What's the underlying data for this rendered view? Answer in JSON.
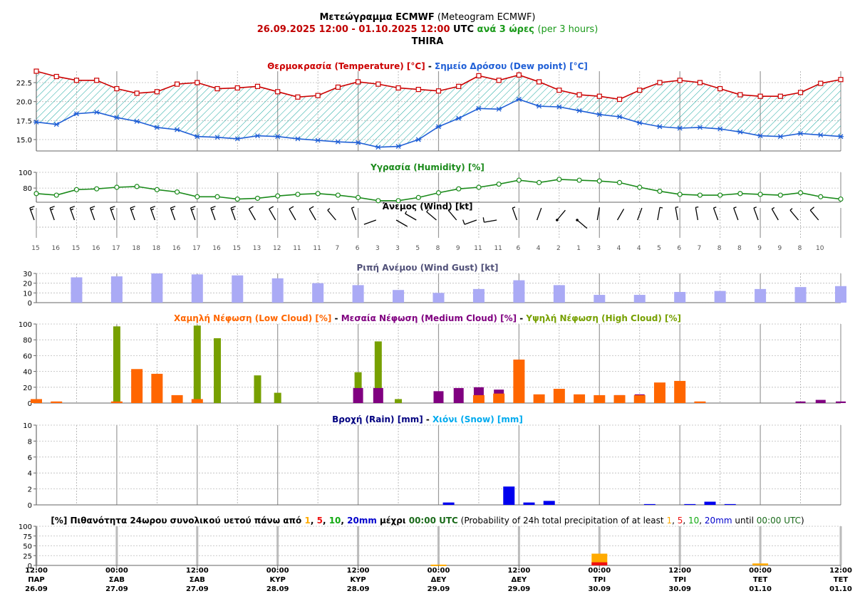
{
  "header": {
    "title_bold": "Μετεώγραμμα ECMWF",
    "title_rest": "(Meteogram ECMWF)",
    "range_start": "26.09.2025 12:00",
    "range_sep": "-",
    "range_end": "01.10.2025 12:00",
    "range_utc": "UTC",
    "interval": "ανά 3 ώρες",
    "interval_en": "(per 3 hours)",
    "location": "THIRA"
  },
  "colors": {
    "temperature": "#cc0000",
    "dew_point": "#1f5fd6",
    "humidity": "#1a8a1a",
    "gust": "#aaaaf5",
    "low_cloud": "#ff6600",
    "medium_cloud": "#800080",
    "high_cloud": "#77a000",
    "rain": "#0000ee",
    "prob_1mm": "#ffaa00",
    "prob_5mm": "#ee1111",
    "prob_10mm": "#11aa11",
    "prob_20mm": "#0000cc"
  },
  "time_axis": {
    "ticks": [
      {
        "time": "12:00",
        "day": "ΠΑΡ",
        "date": "26.09"
      },
      {
        "time": "00:00",
        "day": "ΣΑΒ",
        "date": "27.09"
      },
      {
        "time": "12:00",
        "day": "ΣΑΒ",
        "date": "27.09"
      },
      {
        "time": "00:00",
        "day": "ΚΥΡ",
        "date": "28.09"
      },
      {
        "time": "12:00",
        "day": "ΚΥΡ",
        "date": "28.09"
      },
      {
        "time": "00:00",
        "day": "ΔΕΥ",
        "date": "29.09"
      },
      {
        "time": "12:00",
        "day": "ΔΕΥ",
        "date": "29.09"
      },
      {
        "time": "00:00",
        "day": "ΤΡΙ",
        "date": "30.09"
      },
      {
        "time": "12:00",
        "day": "ΤΡΙ",
        "date": "30.09"
      },
      {
        "time": "00:00",
        "day": "ΤΕΤ",
        "date": "01.10"
      },
      {
        "time": "12:00",
        "day": "ΤΕΤ",
        "date": "01.10"
      }
    ]
  },
  "chart_data": [
    {
      "type": "line",
      "id": "temperature",
      "title_parts": [
        {
          "text": "Θερμοκρασία (Temperature) [°C]",
          "color": "#cc0000"
        },
        {
          "text": " - ",
          "color": "#000000"
        },
        {
          "text": "Σημείο Δρόσου (Dew point) [°C]",
          "color": "#1f5fd6"
        }
      ],
      "x_step_hours": 3,
      "ylim": [
        13.5,
        24.0
      ],
      "y_ticks": [
        "15.0",
        "17.5",
        "20.0",
        "22.5"
      ],
      "series": [
        {
          "name": "Θερμοκρασία (Temperature)",
          "values": [
            24.0,
            23.3,
            22.8,
            22.8,
            21.7,
            21.1,
            21.3,
            22.3,
            22.5,
            21.7,
            21.8,
            22.0,
            21.3,
            20.6,
            20.8,
            21.9,
            22.6,
            22.3,
            21.8,
            21.6,
            21.4,
            22.0,
            23.4,
            22.8,
            23.5,
            22.6,
            21.5,
            20.9,
            20.7,
            20.3,
            21.5,
            22.5,
            22.8,
            22.5,
            21.7,
            20.9,
            20.7,
            20.7,
            21.2,
            22.4,
            22.9
          ]
        },
        {
          "name": "Σημείο Δρόσου (Dew point)",
          "values": [
            17.3,
            17.0,
            18.4,
            18.6,
            17.9,
            17.4,
            16.6,
            16.3,
            15.4,
            15.3,
            15.1,
            15.5,
            15.4,
            15.1,
            14.9,
            14.7,
            14.6,
            14.0,
            14.1,
            15.0,
            16.7,
            17.8,
            19.1,
            19.0,
            20.3,
            19.4,
            19.3,
            18.8,
            18.3,
            18.0,
            17.2,
            16.7,
            16.5,
            16.6,
            16.4,
            16.0,
            15.5,
            15.4,
            15.8,
            15.6,
            15.4
          ]
        }
      ]
    },
    {
      "type": "line",
      "id": "humidity",
      "title_parts": [
        {
          "text": "Υγρασία (Humidity) [%]",
          "color": "#1a8a1a"
        }
      ],
      "x_step_hours": 3,
      "ylim": [
        62,
        100
      ],
      "y_ticks": [
        "80",
        "100"
      ],
      "series": [
        {
          "name": "Υγρασία (Humidity)",
          "values": [
            73,
            71,
            78,
            79,
            81,
            82,
            78,
            75,
            69,
            69,
            66,
            67,
            70,
            72,
            73,
            71,
            68,
            64,
            64,
            68,
            74,
            79,
            81,
            85,
            90,
            87,
            91,
            90,
            89,
            87,
            81,
            76,
            72,
            71,
            71,
            73,
            72,
            71,
            74,
            69,
            66
          ]
        }
      ]
    },
    {
      "type": "table",
      "id": "wind",
      "title_parts": [
        {
          "text": "Άνεμος (Wind) [kt]",
          "color": "#000000"
        }
      ],
      "x_step_hours": 3,
      "speed_kt": [
        15,
        16,
        15,
        16,
        17,
        18,
        18,
        16,
        17,
        16,
        15,
        13,
        12,
        11,
        11,
        7,
        6,
        3,
        3,
        5,
        8,
        9,
        11,
        11,
        6,
        4,
        2,
        1,
        3,
        4,
        4,
        5,
        6,
        7,
        8,
        8,
        9,
        9,
        8,
        10
      ],
      "direction_deg": [
        340,
        340,
        340,
        340,
        340,
        340,
        340,
        340,
        340,
        340,
        340,
        330,
        330,
        330,
        330,
        320,
        340,
        250,
        120,
        300,
        310,
        320,
        250,
        260,
        340,
        20,
        40,
        130,
        10,
        30,
        20,
        10,
        350,
        350,
        340,
        340,
        340,
        330,
        320,
        320
      ]
    },
    {
      "type": "bar",
      "id": "wind_gust",
      "title_parts": [
        {
          "text": "Ριπή Ανέμου (Wind Gust) [kt]",
          "color": "#505078"
        }
      ],
      "x_step_hours": 6,
      "ylim": [
        0,
        30
      ],
      "y_ticks": [
        "0",
        "10",
        "20",
        "30"
      ],
      "values": [
        null,
        26,
        27,
        30,
        29,
        28,
        25,
        20,
        18,
        13,
        10,
        14,
        23,
        18,
        8,
        8,
        11,
        12,
        14,
        16,
        17
      ]
    },
    {
      "type": "bar",
      "id": "clouds",
      "title_parts": [
        {
          "text": "Χαμηλή Νέφωση (Low Cloud) [%]",
          "color": "#ff6600"
        },
        {
          "text": " - ",
          "color": "#000000"
        },
        {
          "text": "Μεσαία Νέφωση (Medium Cloud) [%]",
          "color": "#800080"
        },
        {
          "text": " - ",
          "color": "#000000"
        },
        {
          "text": "Υψηλή Νέφωση (High Cloud) [%]",
          "color": "#77a000"
        }
      ],
      "x_step_hours": 3,
      "ylim": [
        0,
        100
      ],
      "y_ticks": [
        "0",
        "20",
        "40",
        "60",
        "80",
        "100"
      ],
      "series": [
        {
          "name": "Χαμηλή Νέφωση (Low Cloud)",
          "values": [
            5,
            2,
            0,
            0,
            2,
            43,
            37,
            10,
            5,
            0,
            0,
            0,
            0,
            0,
            0,
            0,
            0,
            0,
            0,
            0,
            0,
            0,
            10,
            12,
            55,
            11,
            18,
            11,
            10,
            10,
            10,
            26,
            28,
            2,
            0,
            0,
            0,
            0,
            0,
            0
          ]
        },
        {
          "name": "Μεσαία Νέφωση (Medium Cloud)",
          "values": [
            0,
            0,
            0,
            0,
            0,
            0,
            0,
            0,
            0,
            0,
            0,
            0,
            0,
            0,
            0,
            0,
            19,
            19,
            0,
            0,
            15,
            19,
            20,
            17,
            0,
            0,
            0,
            0,
            0,
            10,
            11,
            0,
            0,
            0,
            0,
            0,
            0,
            0,
            2,
            4,
            2
          ]
        },
        {
          "name": "Υψηλή Νέφωση (High Cloud)",
          "values": [
            0,
            0,
            0,
            0,
            97,
            0,
            0,
            0,
            98,
            82,
            0,
            35,
            13,
            0,
            0,
            0,
            39,
            78,
            5,
            0,
            0,
            0,
            0,
            0,
            0,
            0,
            0,
            0,
            0,
            0,
            0,
            0,
            0,
            0,
            0,
            0,
            0,
            0,
            0,
            0,
            0
          ]
        }
      ]
    },
    {
      "type": "bar",
      "id": "precipitation",
      "title_parts": [
        {
          "text": "Βροχή (Rain) [mm]",
          "color": "#000080"
        },
        {
          "text": " - ",
          "color": "#000000"
        },
        {
          "text": "Χιόνι (Snow) [mm]",
          "color": "#00aaee"
        }
      ],
      "x_step_hours": 3,
      "ylim": [
        0,
        10
      ],
      "y_ticks": [
        "0",
        "2",
        "4",
        "6",
        "8",
        "10"
      ],
      "series": [
        {
          "name": "Βροχή (Rain)",
          "values": [
            0,
            0,
            0,
            0,
            0,
            0,
            0,
            0,
            0,
            0,
            0,
            0,
            0,
            0,
            0,
            0,
            0,
            0,
            0,
            0,
            0.3,
            0,
            0,
            2.3,
            0.3,
            0.5,
            0,
            0,
            0,
            0,
            0.1,
            0,
            0.1,
            0.4,
            0.1,
            0,
            0,
            0,
            0,
            0
          ]
        }
      ]
    },
    {
      "type": "bar",
      "id": "probability",
      "title_parts": [
        {
          "text": "[%] Πιθανότητα 24ωρου συνολικού υετού πάνω από ",
          "color": "#000000",
          "bold": true
        },
        {
          "text": "1",
          "color": "#ffaa00",
          "bold": true
        },
        {
          "text": ", ",
          "color": "#000000",
          "bold": true
        },
        {
          "text": "5",
          "color": "#ee1111",
          "bold": true
        },
        {
          "text": ", ",
          "color": "#000000",
          "bold": true
        },
        {
          "text": "10",
          "color": "#11aa11",
          "bold": true
        },
        {
          "text": ", ",
          "color": "#000000",
          "bold": true
        },
        {
          "text": "20mm",
          "color": "#0000cc",
          "bold": true
        },
        {
          "text": " μέχρι ",
          "color": "#000000",
          "bold": true
        },
        {
          "text": "00:00 UTC",
          "color": "#1a6a1a",
          "bold": true
        },
        {
          "text": " (Probability of 24h total precipitation of at least ",
          "color": "#000000",
          "bold": false
        },
        {
          "text": "1",
          "color": "#ffaa00",
          "bold": false
        },
        {
          "text": ", ",
          "color": "#000000",
          "bold": false
        },
        {
          "text": "5",
          "color": "#ee1111",
          "bold": false
        },
        {
          "text": ", ",
          "color": "#000000",
          "bold": false
        },
        {
          "text": "10",
          "color": "#11aa11",
          "bold": false
        },
        {
          "text": ", ",
          "color": "#000000",
          "bold": false
        },
        {
          "text": "20mm",
          "color": "#0000cc",
          "bold": false
        },
        {
          "text": " until ",
          "color": "#000000",
          "bold": false
        },
        {
          "text": "00:00 UTC",
          "color": "#1a6a1a",
          "bold": false
        },
        {
          "text": ")",
          "color": "#000000",
          "bold": false
        }
      ],
      "ylim": [
        0,
        100
      ],
      "y_ticks": [
        "0",
        "25",
        "50",
        "75",
        "100"
      ],
      "categories": [
        "27.09 00:00",
        "28.09 00:00",
        "29.09 00:00",
        "30.09 00:00",
        "01.10 00:00"
      ],
      "series": [
        {
          "name": "1mm",
          "values": [
            0,
            0,
            2,
            30,
            5
          ]
        },
        {
          "name": "5mm",
          "values": [
            0,
            0,
            0,
            8,
            0
          ]
        }
      ]
    }
  ]
}
